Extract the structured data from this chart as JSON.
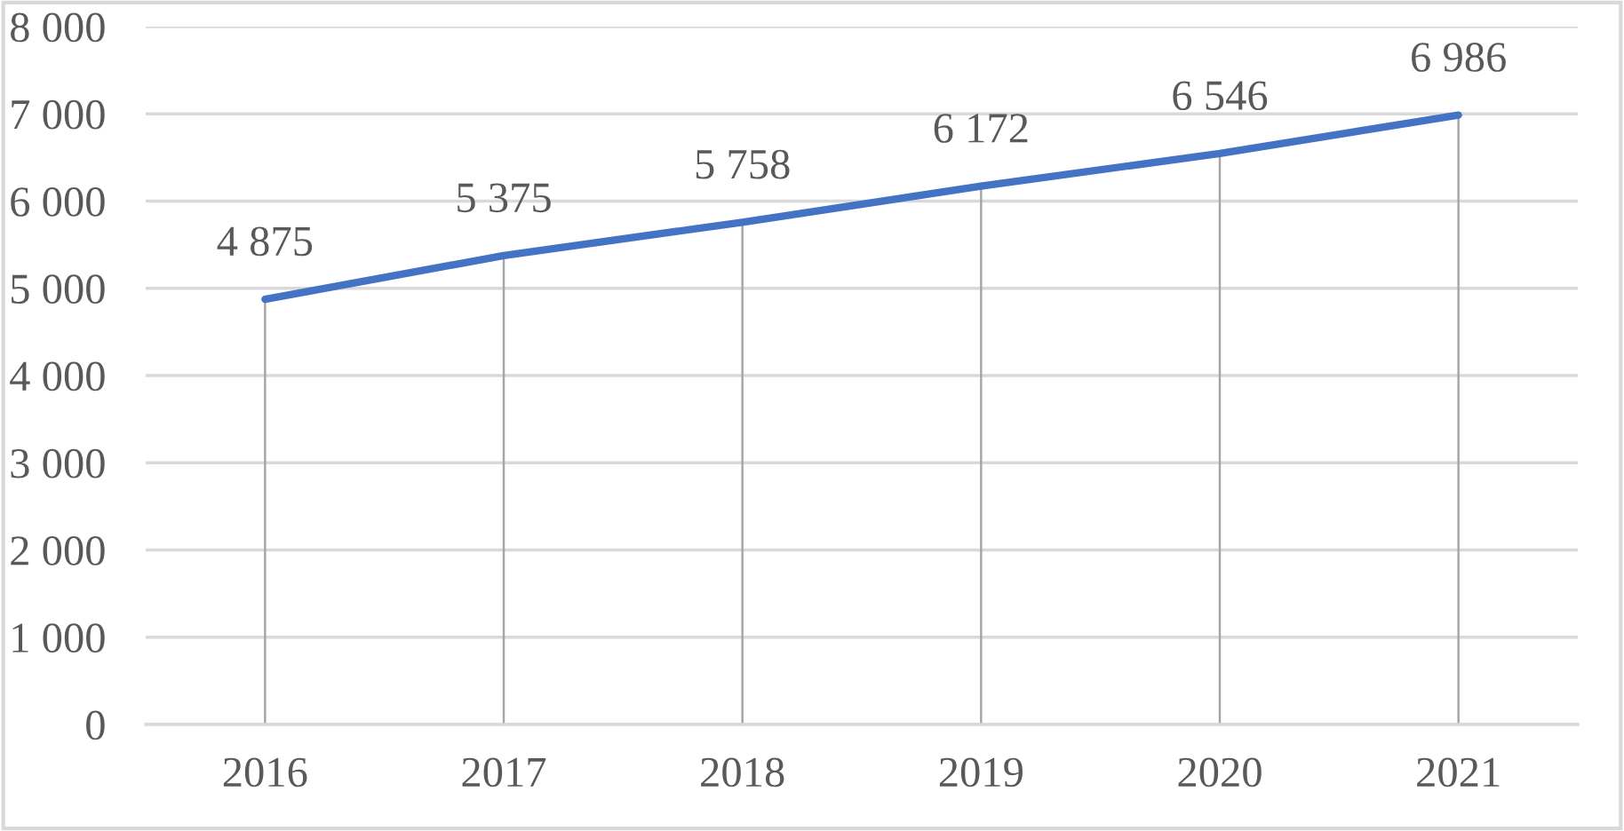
{
  "chart_data": {
    "type": "line",
    "categories": [
      "2016",
      "2017",
      "2018",
      "2019",
      "2020",
      "2021"
    ],
    "series": [
      {
        "type": "bar",
        "color": "#a5a5a5",
        "values": [
          4875,
          5375,
          5758,
          6172,
          6546,
          6986
        ]
      },
      {
        "color": "#4472c4",
        "values": [
          4875,
          5375,
          5758,
          6172,
          6546,
          6986
        ],
        "value_labels": [
          "4 875",
          "5 375",
          "5 758",
          "6 172",
          "6 546",
          "6 986"
        ]
      }
    ],
    "ylim": [
      0,
      8000
    ],
    "yticks": [
      0,
      {
        "value": 1000,
        "label": "1 000"
      },
      {
        "value": 2000,
        "label": "2 000"
      },
      {
        "value": 3000,
        "label": "3 000"
      },
      {
        "value": 4000,
        "label": "4 000"
      },
      {
        "value": 5000,
        "label": "5 000"
      },
      {
        "value": 6000,
        "label": "6 000"
      },
      {
        "value": 7000,
        "label": "7 000"
      },
      {
        "value": 8000,
        "label": "8 000"
      }
    ],
    "grid": "y",
    "marker": "none",
    "line_style": "solid"
  }
}
